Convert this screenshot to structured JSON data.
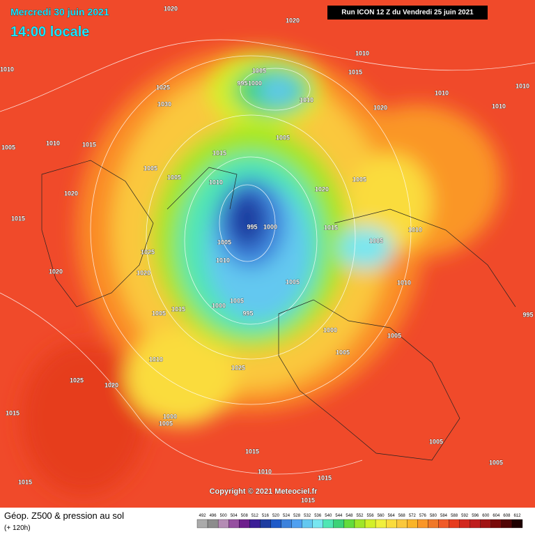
{
  "header": {
    "date": "Mercredi 30 juin 2021",
    "time": "14:00 locale",
    "run": "Run ICON 12 Z du Vendredi 25 juin 2021"
  },
  "copyright": "Copyright © 2021 Meteociel.fr",
  "footer": {
    "title": "Géop. Z500 & pression au sol",
    "subtitle": "(+ 120h)"
  },
  "isobar_labels": [
    1020,
    1020,
    1010,
    1010,
    1005,
    995,
    1000,
    1015,
    1025,
    1010,
    1010,
    1010,
    1030,
    1020,
    1010,
    1005,
    1010,
    1015,
    1005,
    1015,
    1005,
    1005,
    1010,
    1020,
    1005,
    1015,
    1020,
    995,
    1000,
    1015,
    1005,
    1010,
    1025,
    1005,
    1010,
    1020,
    1020,
    1005,
    1010,
    1000,
    1005,
    995,
    1015,
    1005,
    1000,
    1005,
    1010,
    1025,
    1005,
    1025,
    1020,
    1000,
    1005,
    1015,
    1015,
    1010,
    1015,
    1005,
    1005,
    995,
    1015,
    1015
  ],
  "colorbar": {
    "values": [
      492,
      496,
      500,
      504,
      508,
      512,
      516,
      520,
      524,
      528,
      532,
      536,
      540,
      544,
      548,
      552,
      556,
      560,
      564,
      568,
      572,
      576,
      580,
      584,
      588,
      592,
      596,
      600,
      604,
      608,
      612
    ],
    "colors": [
      "#aaaaaa",
      "#8c8c8c",
      "#b48cb4",
      "#9650a0",
      "#6e1e8c",
      "#3c1e96",
      "#1e3ca0",
      "#1e5ac8",
      "#3c82dc",
      "#50a0f0",
      "#64c8f0",
      "#78e6f0",
      "#50e6b4",
      "#3cd278",
      "#64dc3c",
      "#a0e628",
      "#d2f028",
      "#f0f03c",
      "#fadc3c",
      "#fac83c",
      "#fab428",
      "#fa9628",
      "#f07828",
      "#f05a28",
      "#e63c1e",
      "#d2281e",
      "#be1e1e",
      "#a01414",
      "#780a0a",
      "#500505",
      "#1e0000"
    ]
  }
}
